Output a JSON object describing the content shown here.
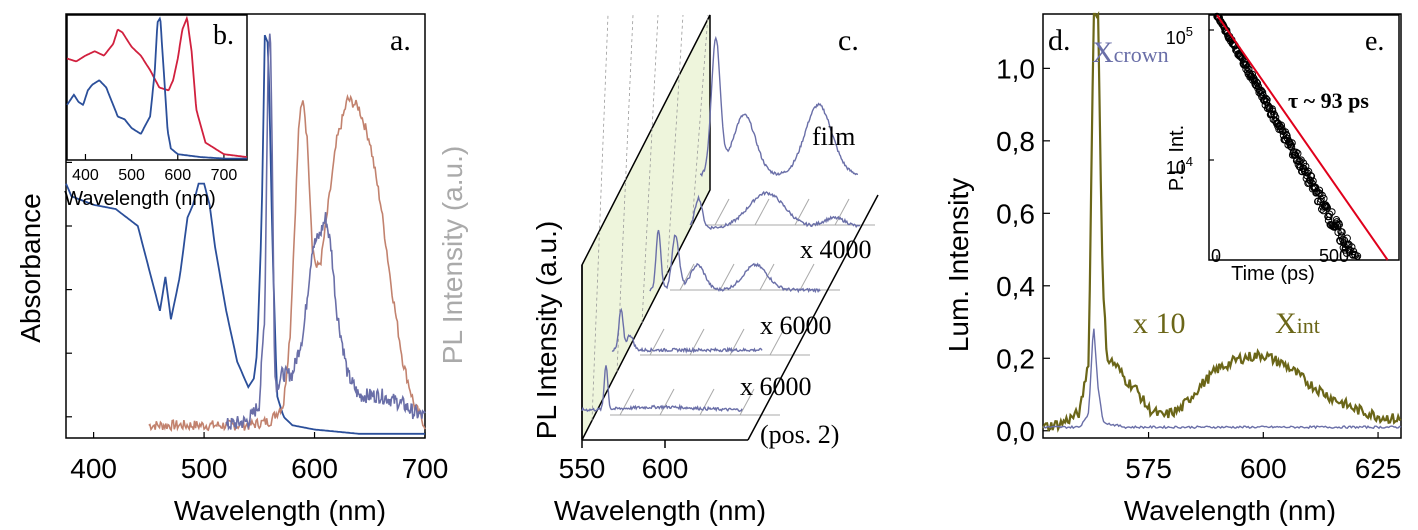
{
  "colors": {
    "blue": "#2b4f9a",
    "brown": "#c2826e",
    "lavender": "#6a6fa8",
    "red": "#d1203e",
    "olive": "#6b6618",
    "gridgreen": "#eef5dc",
    "fit_red": "#e0001b"
  },
  "chart_data": [
    {
      "id": "a",
      "type": "line",
      "panel_label": "a.",
      "xlabel": "Wavelength (nm)",
      "ylabel_left": "Absorbance",
      "ylabel_right": "PL Intensity (a.u.)",
      "xlim": [
        375,
        700
      ],
      "ylim": [
        0,
        1
      ],
      "xticks": [
        "400",
        "500",
        "600",
        "700"
      ],
      "series": [
        {
          "color": "blue",
          "x": [
            375,
            380,
            400,
            420,
            440,
            455,
            460,
            465,
            470,
            478,
            485,
            490,
            495,
            500,
            505,
            510,
            520,
            530,
            540,
            545,
            548,
            552,
            555,
            558,
            562,
            566,
            572,
            580,
            600,
            640,
            700
          ],
          "y": [
            0.6,
            0.57,
            0.55,
            0.54,
            0.5,
            0.35,
            0.3,
            0.38,
            0.28,
            0.38,
            0.52,
            0.55,
            0.6,
            0.6,
            0.55,
            0.45,
            0.3,
            0.18,
            0.12,
            0.14,
            0.2,
            0.5,
            0.95,
            0.93,
            0.45,
            0.1,
            0.05,
            0.03,
            0.02,
            0.01,
            0.01
          ]
        },
        {
          "color": "brown",
          "x": [
            450,
            500,
            540,
            560,
            572,
            578,
            582,
            586,
            590,
            594,
            598,
            602,
            606,
            610,
            620,
            630,
            640,
            650,
            660,
            670,
            680,
            690,
            700
          ],
          "y": [
            0.03,
            0.03,
            0.03,
            0.04,
            0.08,
            0.25,
            0.5,
            0.75,
            0.8,
            0.68,
            0.45,
            0.4,
            0.42,
            0.5,
            0.7,
            0.8,
            0.78,
            0.7,
            0.55,
            0.35,
            0.18,
            0.08,
            0.03
          ]
        },
        {
          "color": "lavender",
          "x": [
            520,
            540,
            550,
            555,
            558,
            560,
            562,
            564,
            566,
            570,
            580,
            590,
            598,
            605,
            610,
            615,
            620,
            630,
            640,
            650,
            660,
            670,
            680,
            690,
            700
          ],
          "y": [
            0.03,
            0.04,
            0.08,
            0.3,
            0.9,
            0.97,
            0.6,
            0.15,
            0.12,
            0.15,
            0.15,
            0.25,
            0.45,
            0.48,
            0.52,
            0.45,
            0.3,
            0.15,
            0.1,
            0.1,
            0.1,
            0.09,
            0.08,
            0.06,
            0.05
          ]
        }
      ]
    },
    {
      "id": "b",
      "type": "line",
      "panel_label": "b.",
      "xlabel": "Wavelength (nm)",
      "xlim": [
        360,
        750
      ],
      "ylim": [
        0,
        1
      ],
      "xticks": [
        "400",
        "500",
        "600",
        "700"
      ],
      "series": [
        {
          "color": "red",
          "x": [
            360,
            380,
            400,
            420,
            440,
            460,
            470,
            480,
            500,
            520,
            540,
            560,
            580,
            590,
            600,
            610,
            620,
            630,
            640,
            660,
            700,
            750
          ],
          "y": [
            0.7,
            0.68,
            0.72,
            0.75,
            0.72,
            0.8,
            0.9,
            0.88,
            0.78,
            0.72,
            0.62,
            0.5,
            0.48,
            0.55,
            0.7,
            0.9,
            0.98,
            0.75,
            0.35,
            0.12,
            0.04,
            0.02
          ]
        },
        {
          "color": "blue",
          "x": [
            360,
            375,
            385,
            395,
            405,
            415,
            430,
            445,
            455,
            470,
            485,
            500,
            520,
            540,
            550,
            556,
            562,
            570,
            578,
            585,
            600,
            650,
            700,
            750
          ],
          "y": [
            0.38,
            0.45,
            0.4,
            0.38,
            0.48,
            0.52,
            0.55,
            0.5,
            0.42,
            0.3,
            0.28,
            0.22,
            0.18,
            0.3,
            0.6,
            0.95,
            0.98,
            0.6,
            0.2,
            0.08,
            0.04,
            0.02,
            0.01,
            0.01
          ]
        }
      ]
    },
    {
      "id": "c",
      "type": "line",
      "panel_label": "c.",
      "xlabel": "Wavelength (nm)",
      "ylabel": "PL Intensity (a.u.)",
      "xticks": [
        "550",
        "600"
      ],
      "series": [
        {
          "name": "film",
          "color": "lavender"
        },
        {
          "name": "x 4000",
          "color": "lavender"
        },
        {
          "name": "x 6000",
          "color": "lavender"
        },
        {
          "name": "x 6000",
          "color": "lavender"
        }
      ],
      "extra_label": "(pos. 2)"
    },
    {
      "id": "d",
      "type": "line",
      "panel_label": "d.",
      "xlabel": "Wavelength (nm)",
      "ylabel": "Lum. Intensity",
      "xlim": [
        552,
        630
      ],
      "ylim": [
        -0.02,
        1.15
      ],
      "xticks": [
        "575",
        "600",
        "625"
      ],
      "yticks": [
        "0,0",
        "0,2",
        "0,4",
        "0,6",
        "0,8",
        "1,0"
      ],
      "annotations": {
        "xcrown": "Xcrown",
        "x10": "x 10",
        "xint": "Xint"
      },
      "series": [
        {
          "color": "olive",
          "x": [
            552,
            556,
            560,
            562,
            563,
            564,
            565,
            566,
            568,
            570,
            572,
            575,
            578,
            582,
            586,
            590,
            595,
            600,
            605,
            610,
            615,
            620,
            625,
            630
          ],
          "y": [
            0.01,
            0.02,
            0.05,
            0.2,
            1.15,
            1.15,
            0.4,
            0.2,
            0.18,
            0.14,
            0.12,
            0.06,
            0.04,
            0.06,
            0.12,
            0.17,
            0.2,
            0.21,
            0.18,
            0.13,
            0.09,
            0.06,
            0.04,
            0.03
          ]
        },
        {
          "color": "lavender",
          "x": [
            552,
            560,
            562,
            563,
            564,
            565,
            566,
            570,
            580,
            600,
            620,
            630
          ],
          "y": [
            0.01,
            0.01,
            0.05,
            0.3,
            0.12,
            0.03,
            0.02,
            0.01,
            0.01,
            0.01,
            0.01,
            0.01
          ]
        }
      ]
    },
    {
      "id": "e",
      "type": "scatter",
      "panel_label": "e.",
      "xlabel": "Time (ps)",
      "ylabel": "P.L. Int.",
      "xticks": [
        "0",
        "500"
      ],
      "yticks": [
        "10",
        "10"
      ],
      "ytick_exponents": [
        "5",
        "4"
      ],
      "annotation": "τ ~ 93 ps",
      "fit": {
        "tau": 93,
        "color": "fit_red"
      }
    }
  ]
}
